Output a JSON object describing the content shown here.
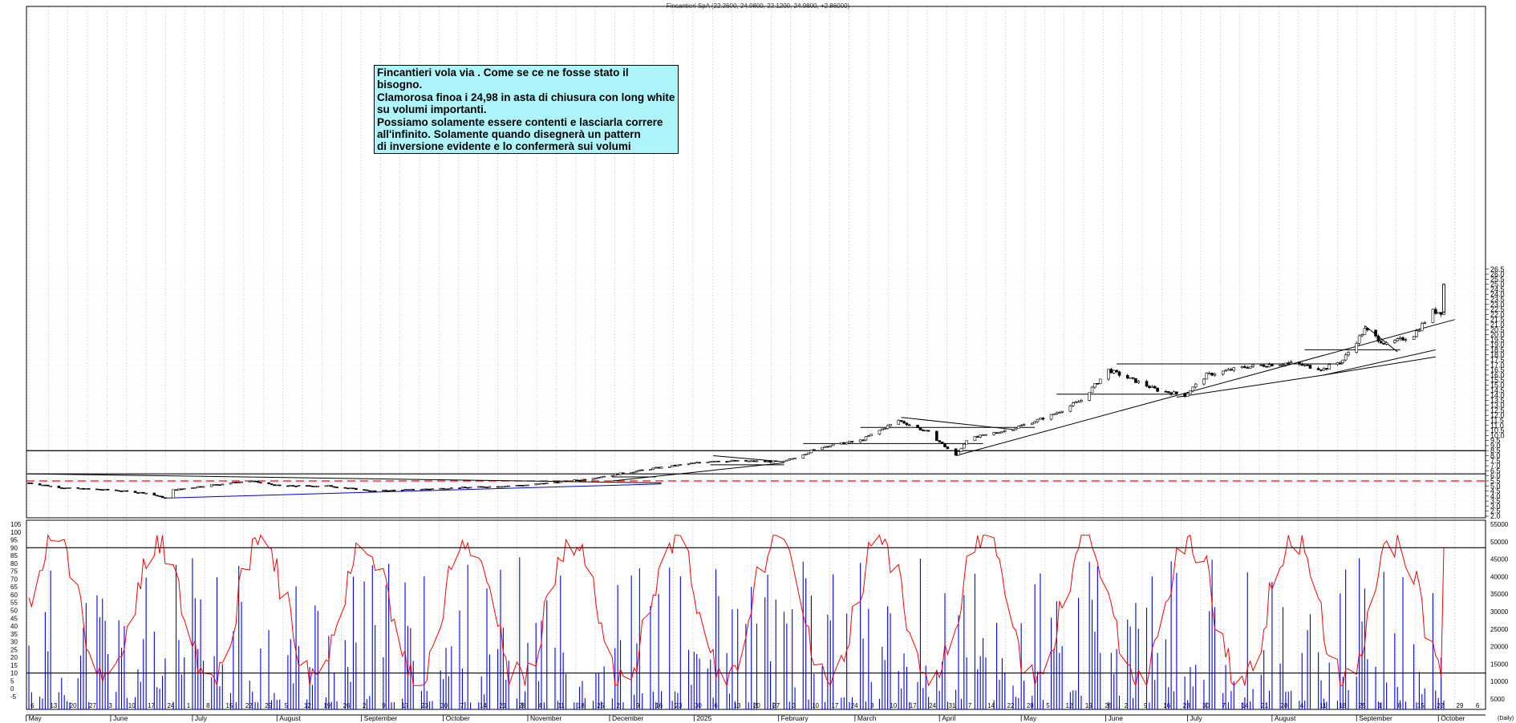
{
  "title": "Fincantieri SpA (22.2600, 24.9800, 22.1200, 24.9800, +2.86000)",
  "annotation": "Fincantieri vola via . Come se ce ne fosse stato il bisogno.\nClamorosa finoa i 24,98 in asta di chiusura con  long white\nsu volumi importanti.\nPossiamo solamente essere contenti e lasciarla correre\nall'infinito. Solamente quando disegnerà un pattern\ndi inversione evidente e lo confermerà sui volumi\npotremo preoccuparci e pensare al profit.",
  "colors": {
    "background": "#ffffff",
    "candle": "#000000",
    "volume": "#0000ff",
    "oscillator": "#ff0000",
    "blue_trendline": "#0000cc",
    "dashed_level": "#ff0000",
    "annotation_bg": "#aef5fb"
  },
  "chart_data": [
    {
      "type": "candlestick",
      "title": "Fincantieri SpA (22.2600, 24.9800, 22.1200, 24.9800, +2.86000)",
      "ylim": [
        1.5,
        26.5
      ],
      "y_ticks": [
        "2.0",
        "2.5",
        "3.0",
        "3.5",
        "4.0",
        "4.5",
        "5.0",
        "5.5",
        "6.0",
        "6.5",
        "7.0",
        "7.5",
        "8.0",
        "8.5",
        "9.0",
        "9.5",
        "10.0",
        "10.5",
        "11.0",
        "11.5",
        "12.0",
        "12.5",
        "13.0",
        "13.5",
        "14.0",
        "14.5",
        "15.0",
        "15.5",
        "16.0",
        "16.5",
        "17.0",
        "17.5",
        "18.0",
        "18.5",
        "19.0",
        "19.5",
        "20.0",
        "20.5",
        "21.0",
        "21.5",
        "22.0",
        "22.5",
        "23.0",
        "23.5",
        "24.0",
        "24.5",
        "25.0",
        "25.5",
        "26.0",
        "26.5"
      ],
      "last_close": 24.98,
      "horizontal_levels": [
        8.5,
        6.2
      ],
      "dashed_level": 5.5,
      "price_path": [
        [
          "2024-05-02",
          5.3
        ],
        [
          "2024-05-15",
          4.8
        ],
        [
          "2024-06-01",
          4.6
        ],
        [
          "2024-06-14",
          4.3
        ],
        [
          "2024-06-21",
          3.8
        ],
        [
          "2024-06-24",
          4.6
        ],
        [
          "2024-07-05",
          5.0
        ],
        [
          "2024-07-22",
          5.5
        ],
        [
          "2024-08-02",
          5.0
        ],
        [
          "2024-08-20",
          5.0
        ],
        [
          "2024-09-05",
          4.5
        ],
        [
          "2024-09-25",
          4.7
        ],
        [
          "2024-10-15",
          4.9
        ],
        [
          "2024-11-01",
          5.1
        ],
        [
          "2024-11-20",
          5.6
        ],
        [
          "2024-12-02",
          6.1
        ],
        [
          "2024-12-16",
          6.7
        ],
        [
          "2025-01-08",
          7.5
        ],
        [
          "2025-02-03",
          7.4
        ],
        [
          "2025-02-17",
          8.9
        ],
        [
          "2025-03-03",
          9.5
        ],
        [
          "2025-03-17",
          11.5
        ],
        [
          "2025-03-28",
          10.3
        ],
        [
          "2025-04-07",
          8.0
        ],
        [
          "2025-04-11",
          9.6
        ],
        [
          "2025-04-28",
          10.7
        ],
        [
          "2025-05-12",
          12.0
        ],
        [
          "2025-05-23",
          13.5
        ],
        [
          "2025-06-02",
          16.5
        ],
        [
          "2025-06-20",
          14.5
        ],
        [
          "2025-06-30",
          14.0
        ],
        [
          "2025-07-08",
          16.0
        ],
        [
          "2025-07-22",
          16.8
        ],
        [
          "2025-08-07",
          17.2
        ],
        [
          "2025-08-20",
          16.6
        ],
        [
          "2025-08-27",
          17.5
        ],
        [
          "2025-09-04",
          20.5
        ],
        [
          "2025-09-12",
          19.0
        ],
        [
          "2025-09-22",
          20.0
        ],
        [
          "2025-09-29",
          22.3
        ],
        [
          "2025-10-02",
          22.26
        ],
        [
          "2025-10-03",
          24.98
        ]
      ],
      "x_tick_labels": [
        "6",
        "13",
        "20",
        "27",
        "3",
        "10",
        "17",
        "24",
        "1",
        "8",
        "15",
        "22",
        "29",
        "5",
        "12",
        "19",
        "26",
        "2",
        "9",
        "17",
        "23",
        "30",
        "7",
        "14",
        "21",
        "28",
        "4",
        "11",
        "18",
        "25",
        "2",
        "9",
        "16",
        "23",
        "30",
        "6",
        "13",
        "20",
        "27",
        "3",
        "10",
        "17",
        "24",
        "3",
        "10",
        "17",
        "24",
        "31",
        "7",
        "14",
        "22",
        "28",
        "5",
        "12",
        "19",
        "26",
        "2",
        "9",
        "16",
        "23",
        "30",
        "7",
        "14",
        "21",
        "28",
        "4",
        "11",
        "18",
        "25",
        "1",
        "8",
        "15",
        "22",
        "29",
        "6",
        "13"
      ],
      "month_labels": [
        "May",
        "June",
        "July",
        "August",
        "September",
        "October",
        "November",
        "December",
        "2025",
        "February",
        "March",
        "April",
        "May",
        "June",
        "July",
        "August",
        "September",
        "October"
      ]
    },
    {
      "type": "bar+line",
      "series": [
        {
          "name": "",
          "kind": "volume",
          "y_ticks": [
            "5000",
            "10000",
            "15000",
            "20000",
            "25000",
            "30000",
            "35000",
            "40000",
            "45000",
            "50000",
            "55000"
          ]
        },
        {
          "name": "",
          "kind": "oscillator",
          "y_ticks": [
            "-5",
            "0",
            "5",
            "10",
            "15",
            "20",
            "25",
            "30",
            "35",
            "40",
            "45",
            "50",
            "55",
            "60",
            "65",
            "70",
            "75",
            "80",
            "85",
            "90",
            "95",
            "100",
            "105"
          ],
          "levels": [
            90,
            10
          ],
          "last": 90
        }
      ]
    }
  ],
  "axis_unit": "(Daily)"
}
